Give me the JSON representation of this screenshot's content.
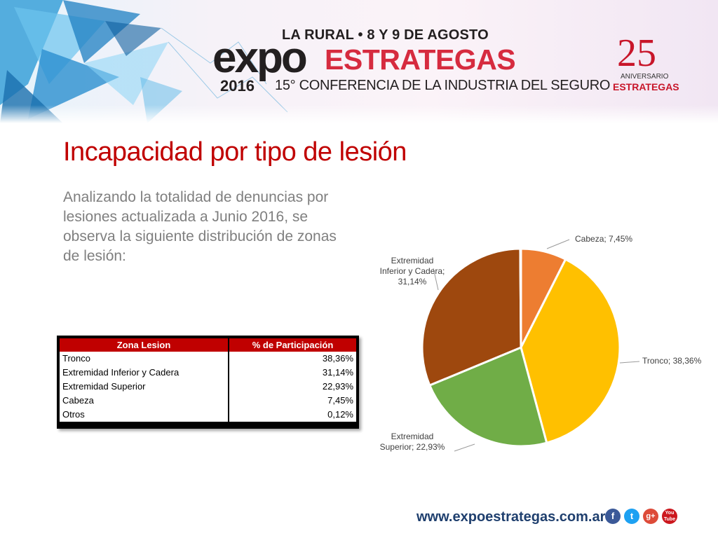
{
  "banner": {
    "event_line": "LA RURAL • 8 Y 9 DE AGOSTO",
    "brand_expo": "expo",
    "brand_strategas": "ESTRATEGAS",
    "year": "2016",
    "conference": "15° CONFERENCIA DE LA INDUSTRIA DEL SEGURO",
    "anniversary_number": "25",
    "anniversary_label": "ANIVERSARIO",
    "anniversary_brand": "ESTRATEGAS"
  },
  "slide": {
    "title": "Incapacidad por tipo de lesión",
    "intro": "Analizando la totalidad de denuncias por lesiones actualizada a Junio 2016, se observa la siguiente distribución de zonas de lesión:"
  },
  "table": {
    "headers": [
      "Zona Lesion",
      "% de Participación"
    ],
    "rows": [
      [
        "Tronco",
        "38,36%"
      ],
      [
        "Extremidad Inferior y Cadera",
        "31,14%"
      ],
      [
        "Extremidad Superior",
        "22,93%"
      ],
      [
        "Cabeza",
        "7,45%"
      ],
      [
        "Otros",
        "0,12%"
      ]
    ]
  },
  "chart_data": {
    "type": "pie",
    "start_angle_deg": 0,
    "direction": "clockwise",
    "slices": [
      {
        "label": "Cabeza",
        "value": 7.45,
        "display": "Cabeza; 7,45%",
        "color": "#ed7d31"
      },
      {
        "label": "Tronco",
        "value": 38.36,
        "display": "Tronco; 38,36%",
        "color": "#ffc000"
      },
      {
        "label": "Extremidad Superior",
        "value": 22.93,
        "display_lines": [
          "Extremidad",
          "Superior; 22,93%"
        ],
        "color": "#70ad47"
      },
      {
        "label": "Extremidad Inferior y Cadera",
        "value": 31.14,
        "display_lines": [
          "Extremidad",
          "Inferior y Cadera;",
          "31,14%"
        ],
        "color": "#9e480e"
      },
      {
        "label": "Otros",
        "value": 0.12,
        "color": "#5b9bd5"
      }
    ]
  },
  "footer": {
    "url": "www.expoestrategas.com.ar",
    "social": [
      {
        "icon": "facebook-icon",
        "glyph": "f",
        "color": "#3b5998"
      },
      {
        "icon": "twitter-icon",
        "glyph": "t",
        "color": "#1da1f2"
      },
      {
        "icon": "google-plus-icon",
        "glyph": "g+",
        "color": "#dd4b39"
      },
      {
        "icon": "youtube-icon",
        "glyph": "You Tube",
        "color": "#cc181e"
      }
    ]
  }
}
